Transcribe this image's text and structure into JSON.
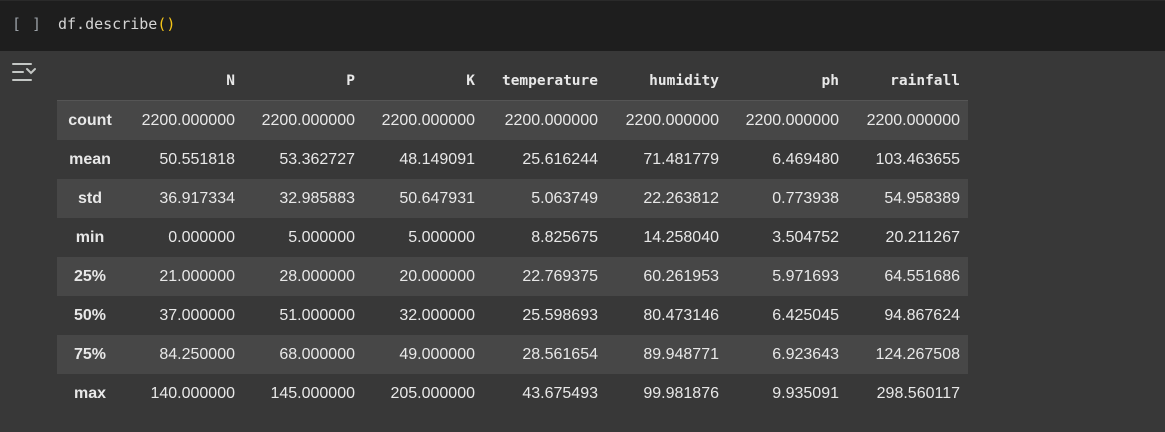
{
  "input": {
    "exec_count": "[ ]",
    "code_prefix": "df.describe",
    "code_paren": "()"
  },
  "output": {
    "icon": "output-toggle-icon",
    "columns": [
      "N",
      "P",
      "K",
      "temperature",
      "humidity",
      "ph",
      "rainfall"
    ],
    "rows": [
      {
        "label": "count",
        "values": [
          "2200.000000",
          "2200.000000",
          "2200.000000",
          "2200.000000",
          "2200.000000",
          "2200.000000",
          "2200.000000"
        ]
      },
      {
        "label": "mean",
        "values": [
          "50.551818",
          "53.362727",
          "48.149091",
          "25.616244",
          "71.481779",
          "6.469480",
          "103.463655"
        ]
      },
      {
        "label": "std",
        "values": [
          "36.917334",
          "32.985883",
          "50.647931",
          "5.063749",
          "22.263812",
          "0.773938",
          "54.958389"
        ]
      },
      {
        "label": "min",
        "values": [
          "0.000000",
          "5.000000",
          "5.000000",
          "8.825675",
          "14.258040",
          "3.504752",
          "20.211267"
        ]
      },
      {
        "label": "25%",
        "values": [
          "21.000000",
          "28.000000",
          "20.000000",
          "22.769375",
          "60.261953",
          "5.971693",
          "64.551686"
        ]
      },
      {
        "label": "50%",
        "values": [
          "37.000000",
          "51.000000",
          "32.000000",
          "25.598693",
          "80.473146",
          "6.425045",
          "94.867624"
        ]
      },
      {
        "label": "75%",
        "values": [
          "84.250000",
          "68.000000",
          "49.000000",
          "28.561654",
          "89.948771",
          "6.923643",
          "124.267508"
        ]
      },
      {
        "label": "max",
        "values": [
          "140.000000",
          "145.000000",
          "205.000000",
          "43.675493",
          "99.981876",
          "9.935091",
          "298.560117"
        ]
      }
    ]
  }
}
